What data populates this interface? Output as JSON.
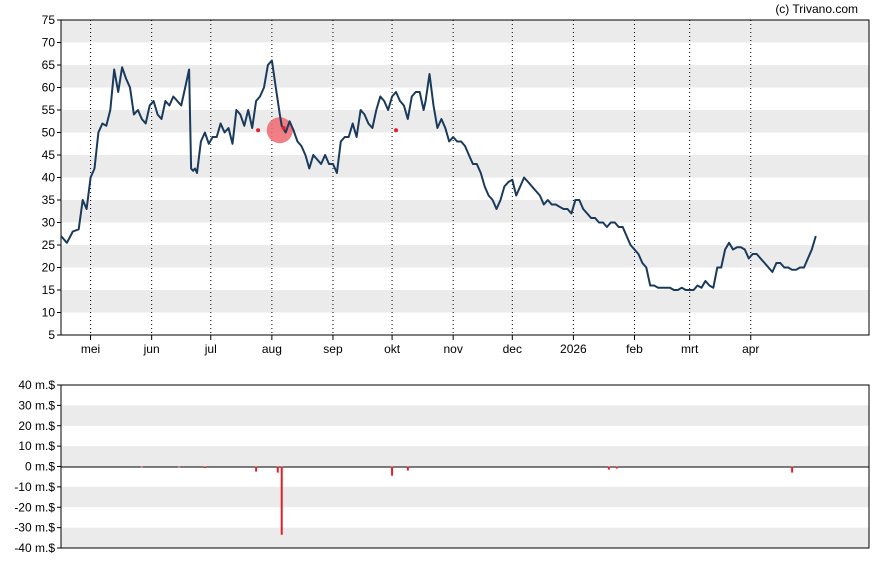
{
  "credit": "(c) Trivano.com",
  "colors": {
    "price_line": "#1a3a5c",
    "band": "#ebebeb",
    "vgrid": "#000000",
    "volume_bar": "#e0202a",
    "highlight": "#f06870"
  },
  "chart_data": [
    {
      "type": "line",
      "ylim": [
        5,
        75
      ],
      "yticks": [
        "5",
        "10",
        "15",
        "20",
        "25",
        "30",
        "35",
        "40",
        "45",
        "50",
        "55",
        "60",
        "65",
        "70",
        "75"
      ],
      "x_axis": "days",
      "xlim": [
        0,
        410
      ],
      "months": [
        {
          "label": "mei",
          "day": 15
        },
        {
          "label": "jun",
          "day": 46
        },
        {
          "label": "jul",
          "day": 76
        },
        {
          "label": "aug",
          "day": 107
        },
        {
          "label": "sep",
          "day": 138
        },
        {
          "label": "okt",
          "day": 168
        },
        {
          "label": "nov",
          "day": 199
        },
        {
          "label": "dec",
          "day": 229
        },
        {
          "label": "2026",
          "day": 260
        },
        {
          "label": "feb",
          "day": 291
        },
        {
          "label": "mrt",
          "day": 319
        },
        {
          "label": "apr",
          "day": 350
        }
      ],
      "grid": true,
      "series": [
        {
          "points": [
            [
              0,
              27
            ],
            [
              3,
              25.5
            ],
            [
              6,
              28
            ],
            [
              9,
              28.5
            ],
            [
              11,
              35
            ],
            [
              13,
              33
            ],
            [
              15,
              40
            ],
            [
              17,
              42
            ],
            [
              19,
              50
            ],
            [
              21,
              52
            ],
            [
              23,
              51.5
            ],
            [
              25,
              55
            ],
            [
              27,
              64
            ],
            [
              29,
              59
            ],
            [
              31,
              64.5
            ],
            [
              33,
              62
            ],
            [
              35,
              60
            ],
            [
              37,
              54
            ],
            [
              39,
              55
            ],
            [
              41,
              53
            ],
            [
              43,
              52
            ],
            [
              45,
              56
            ],
            [
              47,
              57
            ],
            [
              49,
              54
            ],
            [
              51,
              53
            ],
            [
              53,
              57
            ],
            [
              55,
              56
            ],
            [
              57,
              58
            ],
            [
              59,
              57
            ],
            [
              61,
              56
            ],
            [
              63,
              60
            ],
            [
              65,
              64
            ],
            [
              66,
              42
            ],
            [
              67,
              41.5
            ],
            [
              68,
              42
            ],
            [
              69,
              41
            ],
            [
              71,
              48
            ],
            [
              73,
              50
            ],
            [
              75,
              47.5
            ],
            [
              77,
              49
            ],
            [
              79,
              49
            ],
            [
              81,
              52
            ],
            [
              83,
              50
            ],
            [
              85,
              51
            ],
            [
              87,
              47.5
            ],
            [
              89,
              55
            ],
            [
              91,
              54
            ],
            [
              93,
              51.5
            ],
            [
              95,
              55
            ],
            [
              97,
              51
            ],
            [
              99,
              57
            ],
            [
              101,
              58
            ],
            [
              103,
              60
            ],
            [
              105,
              65
            ],
            [
              107,
              66
            ],
            [
              109,
              60
            ],
            [
              111,
              54
            ],
            [
              112,
              51.5
            ],
            [
              114,
              50
            ],
            [
              116,
              52.5
            ],
            [
              118,
              50.5
            ],
            [
              120,
              48
            ],
            [
              122,
              47
            ],
            [
              124,
              45
            ],
            [
              126,
              42
            ],
            [
              128,
              45
            ],
            [
              130,
              44
            ],
            [
              132,
              43
            ],
            [
              134,
              45
            ],
            [
              136,
              43
            ],
            [
              138,
              43
            ],
            [
              140,
              41
            ],
            [
              142,
              48
            ],
            [
              144,
              49
            ],
            [
              146,
              49
            ],
            [
              148,
              52
            ],
            [
              150,
              49
            ],
            [
              152,
              55
            ],
            [
              154,
              54
            ],
            [
              156,
              52
            ],
            [
              158,
              51
            ],
            [
              160,
              55
            ],
            [
              162,
              58
            ],
            [
              164,
              57
            ],
            [
              166,
              55
            ],
            [
              168,
              58
            ],
            [
              170,
              59
            ],
            [
              172,
              57
            ],
            [
              174,
              56
            ],
            [
              176,
              53
            ],
            [
              178,
              58
            ],
            [
              180,
              59
            ],
            [
              182,
              59
            ],
            [
              184,
              55
            ],
            [
              185,
              57
            ],
            [
              187,
              63
            ],
            [
              189,
              56
            ],
            [
              191,
              51
            ],
            [
              193,
              53
            ],
            [
              195,
              51
            ],
            [
              197,
              48
            ],
            [
              199,
              49
            ],
            [
              201,
              48
            ],
            [
              203,
              48
            ],
            [
              205,
              47
            ],
            [
              207,
              45
            ],
            [
              209,
              43
            ],
            [
              211,
              43
            ],
            [
              213,
              41
            ],
            [
              215,
              38
            ],
            [
              217,
              36
            ],
            [
              219,
              35
            ],
            [
              221,
              33
            ],
            [
              223,
              35
            ],
            [
              225,
              38
            ],
            [
              227,
              39
            ],
            [
              229,
              39.5
            ],
            [
              231,
              36
            ],
            [
              233,
              38
            ],
            [
              235,
              40
            ],
            [
              237,
              39
            ],
            [
              239,
              38
            ],
            [
              241,
              37
            ],
            [
              243,
              36
            ],
            [
              245,
              34
            ],
            [
              247,
              35
            ],
            [
              249,
              34
            ],
            [
              251,
              34
            ],
            [
              253,
              33.5
            ],
            [
              255,
              33
            ],
            [
              257,
              33
            ],
            [
              259,
              32
            ],
            [
              261,
              35
            ],
            [
              263,
              35
            ],
            [
              265,
              33
            ],
            [
              267,
              32
            ],
            [
              269,
              31
            ],
            [
              271,
              31
            ],
            [
              273,
              30
            ],
            [
              275,
              30
            ],
            [
              277,
              29
            ],
            [
              279,
              30
            ],
            [
              281,
              30
            ],
            [
              283,
              29
            ],
            [
              285,
              29
            ],
            [
              287,
              27
            ],
            [
              289,
              25
            ],
            [
              291,
              24
            ],
            [
              293,
              23
            ],
            [
              295,
              21
            ],
            [
              297,
              20
            ],
            [
              299,
              16
            ],
            [
              301,
              16
            ],
            [
              303,
              15.5
            ],
            [
              305,
              15.5
            ],
            [
              307,
              15.5
            ],
            [
              309,
              15.5
            ],
            [
              311,
              15
            ],
            [
              313,
              15
            ],
            [
              315,
              15.5
            ],
            [
              317,
              15
            ],
            [
              319,
              15
            ],
            [
              321,
              15
            ],
            [
              323,
              16
            ],
            [
              325,
              15.5
            ],
            [
              327,
              17
            ],
            [
              329,
              16
            ],
            [
              331,
              15.5
            ],
            [
              333,
              20
            ],
            [
              335,
              20
            ],
            [
              337,
              24
            ],
            [
              339,
              25.5
            ],
            [
              341,
              24
            ],
            [
              343,
              24.5
            ],
            [
              345,
              24.5
            ],
            [
              347,
              24
            ],
            [
              349,
              22
            ],
            [
              351,
              23
            ],
            [
              353,
              23
            ],
            [
              355,
              22
            ],
            [
              357,
              21
            ],
            [
              359,
              20
            ],
            [
              361,
              19
            ],
            [
              363,
              21
            ],
            [
              365,
              21
            ],
            [
              367,
              20
            ],
            [
              369,
              20
            ],
            [
              371,
              19.5
            ],
            [
              373,
              19.5
            ],
            [
              375,
              20
            ],
            [
              377,
              20
            ],
            [
              379,
              22
            ],
            [
              381,
              24
            ],
            [
              383,
              27
            ]
          ],
          "markers": [
            {
              "day": 100,
              "value": 50.5
            },
            {
              "day": 113,
              "value": 51
            },
            {
              "day": 170,
              "value": 50.5
            }
          ],
          "highlight": {
            "day": 111,
            "value": 50.5
          }
        }
      ]
    },
    {
      "type": "bar",
      "ylim": [
        -40,
        40
      ],
      "yticks": [
        "40 m.$",
        "30 m.$",
        "20 m.$",
        "10 m.$",
        "0 m.$",
        "-10 m.$",
        "-20 m.$",
        "-30 m.$",
        "-40 m.$"
      ],
      "tick_values": [
        40,
        30,
        20,
        10,
        0,
        -10,
        -20,
        -30,
        -40
      ],
      "grid": true,
      "series": [
        {
          "bars": [
            [
              41,
              -0.5
            ],
            [
              60,
              -0.5
            ],
            [
              73,
              -0.8
            ],
            [
              99,
              -2.5
            ],
            [
              110,
              -3
            ],
            [
              112,
              -33.5
            ],
            [
              168,
              -4.5
            ],
            [
              176,
              -2
            ],
            [
              278,
              -1.5
            ],
            [
              282,
              -1
            ],
            [
              371,
              -3
            ]
          ]
        }
      ]
    }
  ]
}
